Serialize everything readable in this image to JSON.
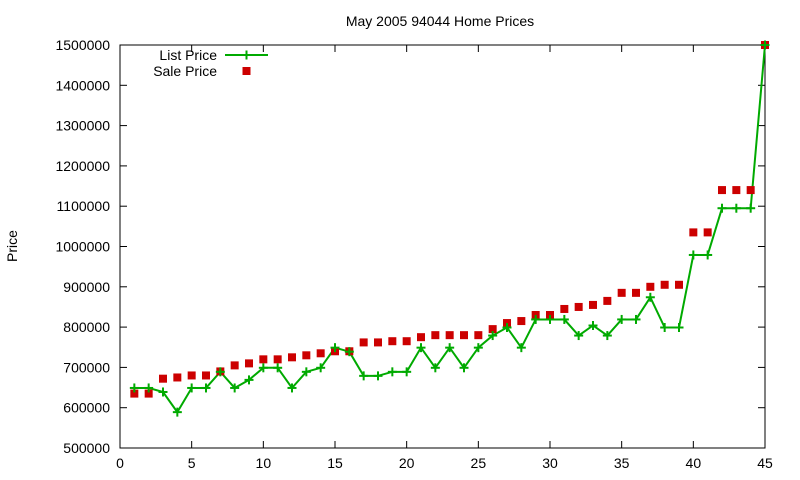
{
  "chart_data": {
    "type": "line",
    "title": "May 2005 94044 Home Prices",
    "xlabel": "",
    "ylabel": "Price",
    "xlim": [
      0,
      45
    ],
    "ylim": [
      500000,
      1500000
    ],
    "xticks": [
      0,
      5,
      10,
      15,
      20,
      25,
      30,
      35,
      40,
      45
    ],
    "yticks": [
      500000,
      600000,
      700000,
      800000,
      900000,
      1000000,
      1100000,
      1200000,
      1300000,
      1400000,
      1500000
    ],
    "grid": false,
    "legend_position": "top-left",
    "x": [
      1,
      2,
      3,
      4,
      5,
      6,
      7,
      8,
      9,
      10,
      11,
      12,
      13,
      14,
      15,
      16,
      17,
      18,
      19,
      20,
      21,
      22,
      23,
      24,
      25,
      26,
      27,
      28,
      29,
      30,
      31,
      32,
      33,
      34,
      35,
      36,
      37,
      38,
      39,
      40,
      41,
      42,
      43,
      44,
      45
    ],
    "series": [
      {
        "name": "List Price",
        "style": "line-with-plus-markers",
        "color": "#00aa00",
        "values": [
          649000,
          649000,
          639000,
          589000,
          649000,
          649000,
          689000,
          649000,
          669000,
          699000,
          699000,
          649000,
          689000,
          699000,
          749000,
          739000,
          679000,
          679000,
          689000,
          689000,
          749000,
          699000,
          749000,
          699000,
          749000,
          779000,
          799000,
          749000,
          819000,
          819000,
          819000,
          779000,
          804000,
          779000,
          819000,
          819000,
          874000,
          799000,
          799000,
          979000,
          979000,
          1095000,
          1095000,
          1095000,
          1500000
        ]
      },
      {
        "name": "Sale Price",
        "style": "square-markers",
        "color": "#cc0000",
        "values": [
          635000,
          635000,
          672000,
          675000,
          680000,
          680000,
          690000,
          705000,
          710000,
          720000,
          720000,
          725000,
          730000,
          735000,
          740000,
          740000,
          762000,
          762000,
          765000,
          765000,
          775000,
          780000,
          780000,
          780000,
          780000,
          795000,
          810000,
          815000,
          830000,
          830000,
          845000,
          850000,
          855000,
          865000,
          885000,
          885000,
          900000,
          905000,
          905000,
          1035000,
          1035000,
          1140000,
          1140000,
          1140000,
          1500000
        ]
      }
    ]
  }
}
